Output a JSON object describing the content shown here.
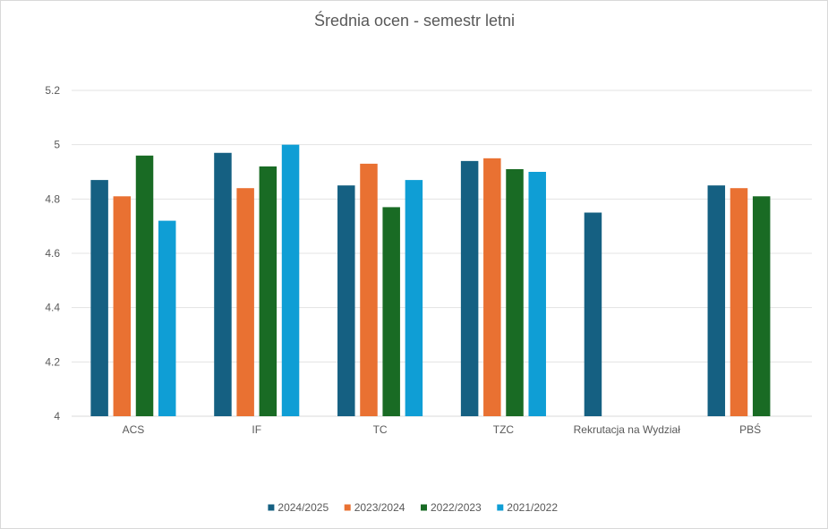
{
  "chart_data": {
    "type": "bar",
    "title": "Średnia ocen - semestr letni",
    "xlabel": "",
    "ylabel": "",
    "ylim": [
      4,
      5.2
    ],
    "yticks": [
      4,
      4.2,
      4.4,
      4.6,
      4.8,
      5,
      5.2
    ],
    "ytick_labels": [
      "4",
      "4.2",
      "4.4",
      "4.6",
      "4.8",
      "5",
      "5.2"
    ],
    "grid": true,
    "legend_position": "bottom",
    "categories": [
      "ACS",
      "IF",
      "TC",
      "TZC",
      "Rekrutacja na Wydział",
      "PBŚ"
    ],
    "series": [
      {
        "name": "2024/2025",
        "color": "#156082",
        "values": [
          4.87,
          4.97,
          4.85,
          4.94,
          4.75,
          4.85
        ]
      },
      {
        "name": "2023/2024",
        "color": "#E97132",
        "values": [
          4.81,
          4.84,
          4.93,
          4.95,
          null,
          4.84
        ]
      },
      {
        "name": "2022/2023",
        "color": "#196B24",
        "values": [
          4.96,
          4.92,
          4.77,
          4.91,
          null,
          4.81
        ]
      },
      {
        "name": "2021/2022",
        "color": "#0F9ED5",
        "values": [
          4.72,
          5.0,
          4.87,
          4.9,
          null,
          null
        ]
      }
    ]
  }
}
